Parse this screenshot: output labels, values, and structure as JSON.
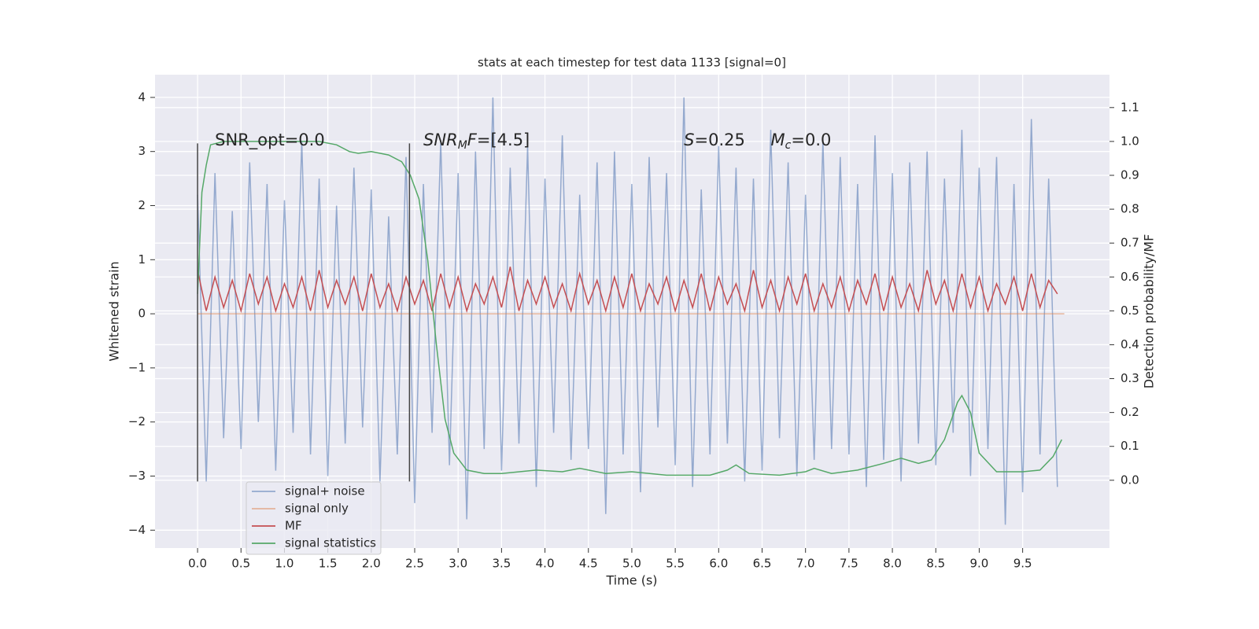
{
  "chart_data": {
    "type": "line",
    "title": "stats at each timestep for test data 1133 [signal=0]",
    "xlabel": "Time (s)",
    "ylabel": "Whitened strain",
    "y2label": "Detection probability/MF",
    "xlim": [
      -0.49,
      10.5
    ],
    "ylim": [
      -4.33,
      4.42
    ],
    "y2lim": [
      -0.2,
      1.197
    ],
    "xticks": [
      {
        "value": 0,
        "label": "0.0"
      },
      0.5,
      {
        "value": 1,
        "label": "1.0"
      },
      1.5,
      {
        "value": 2,
        "label": "2.0"
      },
      2.5,
      {
        "value": 3,
        "label": "3.0"
      },
      3.5,
      {
        "value": 4,
        "label": "4.0"
      },
      4.5,
      {
        "value": 5,
        "label": "5.0"
      },
      5.5,
      {
        "value": 6,
        "label": "6.0"
      },
      6.5,
      {
        "value": 7,
        "label": "7.0"
      },
      7.5,
      {
        "value": 8,
        "label": "8.0"
      },
      8.5,
      {
        "value": 9,
        "label": "9.0"
      },
      9.5
    ],
    "yticks": [
      {
        "value": -4,
        "label": "−4"
      },
      {
        "value": -3,
        "label": "−3"
      },
      {
        "value": -2,
        "label": "−2"
      },
      {
        "value": -1,
        "label": "−1"
      },
      0,
      1,
      2,
      3,
      4
    ],
    "y2ticks": [
      {
        "value": 0,
        "label": "0.0"
      },
      0.1,
      0.2,
      0.3,
      0.4,
      0.5,
      0.6,
      0.7,
      0.8,
      0.9,
      {
        "value": 1,
        "label": "1.0"
      },
      1.1
    ],
    "grid": true,
    "legend": "lower left",
    "series": [
      {
        "name": "signal+ noise",
        "color": "#4c72b0",
        "opacity": 0.55,
        "x": [
          0,
          0.1,
          0.2,
          0.3,
          0.4,
          0.5,
          0.6,
          0.7,
          0.8,
          0.9,
          1,
          1.1,
          1.2,
          1.3,
          1.4,
          1.5,
          1.6,
          1.7,
          1.8,
          1.9,
          2,
          2.1,
          2.2,
          2.3,
          2.4,
          2.5,
          2.6,
          2.7,
          2.8,
          2.9,
          3,
          3.1,
          3.2,
          3.3,
          3.4,
          3.5,
          3.6,
          3.7,
          3.8,
          3.9,
          4,
          4.1,
          4.2,
          4.3,
          4.4,
          4.5,
          4.6,
          4.7,
          4.8,
          4.9,
          5,
          5.1,
          5.2,
          5.3,
          5.4,
          5.5,
          5.6,
          5.7,
          5.8,
          5.9,
          6,
          6.1,
          6.2,
          6.3,
          6.4,
          6.5,
          6.6,
          6.7,
          6.8,
          6.9,
          7,
          7.1,
          7.2,
          7.3,
          7.4,
          7.5,
          7.6,
          7.7,
          7.8,
          7.9,
          8,
          8.1,
          8.2,
          8.3,
          8.4,
          8.5,
          8.6,
          8.7,
          8.8,
          8.9,
          9,
          9.1,
          9.2,
          9.3,
          9.4,
          9.5,
          9.6,
          9.7,
          9.8,
          9.9
        ],
        "values": [
          2.2,
          -3.1,
          2.6,
          -2.3,
          1.9,
          -2.5,
          2.8,
          -2.0,
          2.4,
          -2.9,
          2.1,
          -2.2,
          3.2,
          -2.6,
          2.5,
          -3.0,
          2.0,
          -2.4,
          2.7,
          -2.1,
          2.3,
          -3.1,
          1.8,
          -2.6,
          2.9,
          -3.5,
          2.4,
          -2.2,
          3.2,
          -2.8,
          2.6,
          -3.8,
          3.0,
          -2.5,
          4.0,
          -2.9,
          2.7,
          -2.4,
          3.1,
          -3.2,
          2.5,
          -2.2,
          3.3,
          -2.7,
          2.2,
          -2.5,
          2.8,
          -3.7,
          3.0,
          -2.6,
          2.4,
          -3.3,
          2.9,
          -2.1,
          2.6,
          -2.8,
          4.0,
          -3.2,
          2.3,
          -2.6,
          3.1,
          -2.4,
          2.7,
          -3.1,
          2.5,
          -2.9,
          3.4,
          -2.3,
          2.8,
          -3.0,
          2.2,
          -2.7,
          3.2,
          -2.5,
          2.9,
          -2.6,
          2.4,
          -3.2,
          3.3,
          -2.7,
          2.6,
          -3.1,
          2.8,
          -2.4,
          3.0,
          -2.8,
          2.5,
          -2.2,
          3.4,
          -3.0,
          2.7,
          -2.5,
          2.9,
          -3.9,
          2.4,
          -3.3,
          3.6,
          -2.6,
          2.5,
          -3.2
        ]
      },
      {
        "name": "signal only",
        "color": "#dd8452",
        "opacity": 0.55,
        "x": [
          0,
          9.98
        ],
        "values": [
          0,
          0
        ]
      },
      {
        "name": "MF",
        "color": "#c44e52",
        "opacity": 1,
        "axis": "y2",
        "x": [
          0,
          0.1,
          0.2,
          0.3,
          0.4,
          0.5,
          0.6,
          0.7,
          0.8,
          0.9,
          1,
          1.1,
          1.2,
          1.3,
          1.4,
          1.5,
          1.6,
          1.7,
          1.8,
          1.9,
          2,
          2.1,
          2.2,
          2.3,
          2.4,
          2.5,
          2.6,
          2.7,
          2.8,
          2.9,
          3,
          3.1,
          3.2,
          3.3,
          3.4,
          3.5,
          3.6,
          3.7,
          3.8,
          3.9,
          4,
          4.1,
          4.2,
          4.3,
          4.4,
          4.5,
          4.6,
          4.7,
          4.8,
          4.9,
          5,
          5.1,
          5.2,
          5.3,
          5.4,
          5.5,
          5.6,
          5.7,
          5.8,
          5.9,
          6,
          6.1,
          6.2,
          6.3,
          6.4,
          6.5,
          6.6,
          6.7,
          6.8,
          6.9,
          7,
          7.1,
          7.2,
          7.3,
          7.4,
          7.5,
          7.6,
          7.7,
          7.8,
          7.9,
          8,
          8.1,
          8.2,
          8.3,
          8.4,
          8.5,
          8.6,
          8.7,
          8.8,
          8.9,
          9,
          9.1,
          9.2,
          9.3,
          9.4,
          9.5,
          9.6,
          9.7,
          9.8,
          9.9
        ],
        "values": [
          0.62,
          0.5,
          0.6,
          0.51,
          0.59,
          0.5,
          0.61,
          0.52,
          0.6,
          0.5,
          0.58,
          0.51,
          0.6,
          0.5,
          0.62,
          0.51,
          0.59,
          0.52,
          0.6,
          0.5,
          0.61,
          0.51,
          0.58,
          0.5,
          0.6,
          0.52,
          0.59,
          0.5,
          0.61,
          0.51,
          0.6,
          0.5,
          0.58,
          0.52,
          0.6,
          0.51,
          0.63,
          0.5,
          0.59,
          0.52,
          0.6,
          0.51,
          0.58,
          0.5,
          0.61,
          0.52,
          0.59,
          0.5,
          0.6,
          0.51,
          0.61,
          0.5,
          0.58,
          0.52,
          0.6,
          0.5,
          0.59,
          0.51,
          0.61,
          0.5,
          0.6,
          0.52,
          0.58,
          0.5,
          0.62,
          0.51,
          0.59,
          0.5,
          0.6,
          0.52,
          0.61,
          0.5,
          0.58,
          0.51,
          0.6,
          0.5,
          0.59,
          0.52,
          0.61,
          0.5,
          0.6,
          0.51,
          0.58,
          0.5,
          0.62,
          0.52,
          0.59,
          0.5,
          0.61,
          0.51,
          0.6,
          0.5,
          0.58,
          0.52,
          0.6,
          0.5,
          0.61,
          0.51,
          0.59,
          0.55
        ]
      },
      {
        "name": "signal statistics",
        "color": "#55a868",
        "opacity": 1,
        "axis": "y2",
        "x": [
          0,
          0.05,
          0.1,
          0.15,
          0.3,
          1.0,
          1.4,
          1.6,
          1.75,
          1.85,
          2.0,
          2.2,
          2.35,
          2.45,
          2.55,
          2.65,
          2.75,
          2.85,
          2.95,
          3.1,
          3.3,
          3.5,
          3.9,
          4.2,
          4.4,
          4.7,
          5.0,
          5.4,
          5.9,
          6.1,
          6.2,
          6.35,
          6.7,
          7.0,
          7.1,
          7.3,
          7.6,
          7.9,
          8.1,
          8.3,
          8.45,
          8.6,
          8.75,
          8.8,
          8.9,
          9.0,
          9.2,
          9.5,
          9.7,
          9.85,
          9.95
        ],
        "values": [
          0.55,
          0.85,
          0.93,
          0.99,
          1.0,
          1.0,
          1.0,
          0.99,
          0.97,
          0.965,
          0.97,
          0.96,
          0.94,
          0.9,
          0.83,
          0.65,
          0.4,
          0.18,
          0.08,
          0.03,
          0.02,
          0.02,
          0.03,
          0.025,
          0.035,
          0.02,
          0.025,
          0.015,
          0.015,
          0.03,
          0.045,
          0.02,
          0.015,
          0.025,
          0.035,
          0.02,
          0.03,
          0.05,
          0.065,
          0.05,
          0.06,
          0.12,
          0.23,
          0.25,
          0.2,
          0.08,
          0.025,
          0.025,
          0.03,
          0.07,
          0.12
        ]
      }
    ],
    "vlines": [
      {
        "x": 0,
        "ymin": -3.1,
        "ymax": 3.15
      },
      {
        "x": 2.44,
        "ymin": -3.1,
        "ymax": 3.15
      }
    ],
    "annotations": [
      {
        "x": 0.2,
        "y": 3.2,
        "parts": [
          {
            "text": "SNR_opt=0.0"
          }
        ]
      },
      {
        "x": 2.6,
        "y": 3.2,
        "parts": [
          {
            "text": "SNR",
            "style": "italic"
          },
          {
            "text": "M",
            "style": "sub"
          },
          {
            "text": "F",
            "style": "italic"
          },
          {
            "text": "=[4.5]"
          }
        ]
      },
      {
        "x": 5.6,
        "y": 3.2,
        "parts": [
          {
            "text": "S",
            "style": "italic"
          },
          {
            "text": "=0.25"
          }
        ]
      },
      {
        "x": 6.6,
        "y": 3.2,
        "parts": [
          {
            "text": "M",
            "style": "italic"
          },
          {
            "text": "c",
            "style": "sub"
          },
          {
            "text": "=0.0"
          }
        ]
      }
    ]
  }
}
